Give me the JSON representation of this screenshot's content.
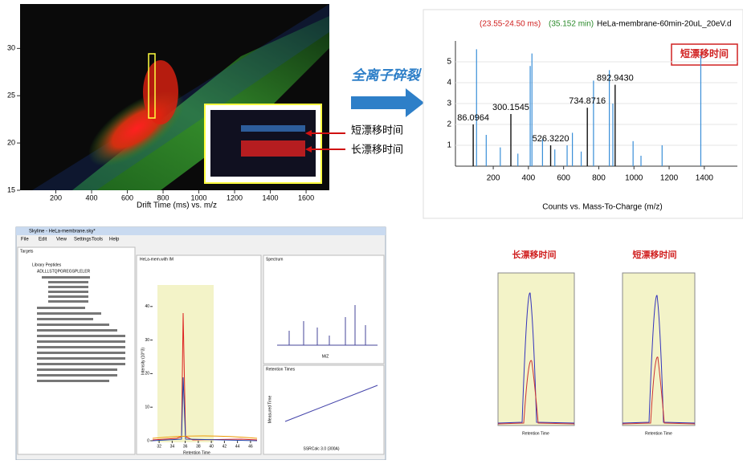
{
  "drift_plot": {
    "xlabel": "Drift Time (ms) vs. m/z",
    "xlim": [
      0,
      1730
    ],
    "ylim": [
      15,
      34.7
    ],
    "xticks": [
      200,
      400,
      600,
      800,
      1000,
      1200,
      1400,
      1600
    ],
    "yticks": [
      15,
      20,
      25,
      30
    ]
  },
  "arrow_label": "全离子碎裂",
  "inset_labels": [
    "短漂移时间",
    "长漂移时间"
  ],
  "spectrum": {
    "header": [
      "(23.55-24.50 ms)",
      "(35.152 min)",
      "HeLa-membrane-60min-20uL_20eV.d"
    ],
    "badge": "短漂移时间",
    "xlabel": "Counts vs. Mass-To-Charge (m/z)",
    "xlim": [
      -15,
      1588
    ],
    "ylim": [
      0,
      6
    ],
    "xticks": [
      200,
      400,
      600,
      800,
      1000,
      1200,
      1400
    ],
    "yticks": [
      1,
      2,
      3,
      4,
      5
    ],
    "labeled_peaks": [
      {
        "x": 86.0964,
        "y": 2.0,
        "label": "86.0964"
      },
      {
        "x": 300.1545,
        "y": 2.5,
        "label": "300.1545"
      },
      {
        "x": 526.322,
        "y": 1.0,
        "label": "526.3220"
      },
      {
        "x": 734.8716,
        "y": 2.8,
        "label": "734.8716"
      },
      {
        "x": 892.943,
        "y": 3.9,
        "label": "892.9430"
      }
    ],
    "peaks": [
      [
        105,
        5.6
      ],
      [
        160,
        1.5
      ],
      [
        240,
        0.9
      ],
      [
        340,
        0.6
      ],
      [
        410,
        4.8
      ],
      [
        420,
        5.4
      ],
      [
        480,
        1.3
      ],
      [
        550,
        0.8
      ],
      [
        620,
        1.0
      ],
      [
        650,
        1.6
      ],
      [
        700,
        0.7
      ],
      [
        770,
        4.1
      ],
      [
        860,
        4.6
      ],
      [
        880,
        3.0
      ],
      [
        995,
        1.2
      ],
      [
        1040,
        0.5
      ],
      [
        1160,
        1.0
      ],
      [
        1380,
        5.3
      ]
    ]
  },
  "chromatogram_titles": [
    "长漂移时间",
    "短漂移时间"
  ],
  "chromatogram_xlabel": "Retention Time",
  "skyline": {
    "title": "Skyline - HeLa-membrane.sky*",
    "menu": [
      "File",
      "Edit",
      "View",
      "Settings",
      "Tools",
      "Help"
    ],
    "tree_title": "Targets",
    "tree_items": [
      "Library Peptides",
      "ADLLLSTQPGREGSPLELER"
    ],
    "chart_title": "HeLa-mem.with IM",
    "xlabel": "Retention Time",
    "ylabel": "Intensity (10^3)",
    "xlim": [
      31,
      47
    ],
    "xticks": [
      32,
      34,
      36,
      38,
      40,
      42,
      44,
      46
    ],
    "ylim": [
      0,
      50
    ],
    "yticks": [
      0,
      10,
      20,
      30,
      40
    ],
    "spectrum_title": "Spectrum",
    "mz_label": "M/Z",
    "rt_title": "Retention Times",
    "rt_xlabel": "SSRCalc 3.0 (300A)",
    "rt_ylabel": "Measured Time"
  }
}
